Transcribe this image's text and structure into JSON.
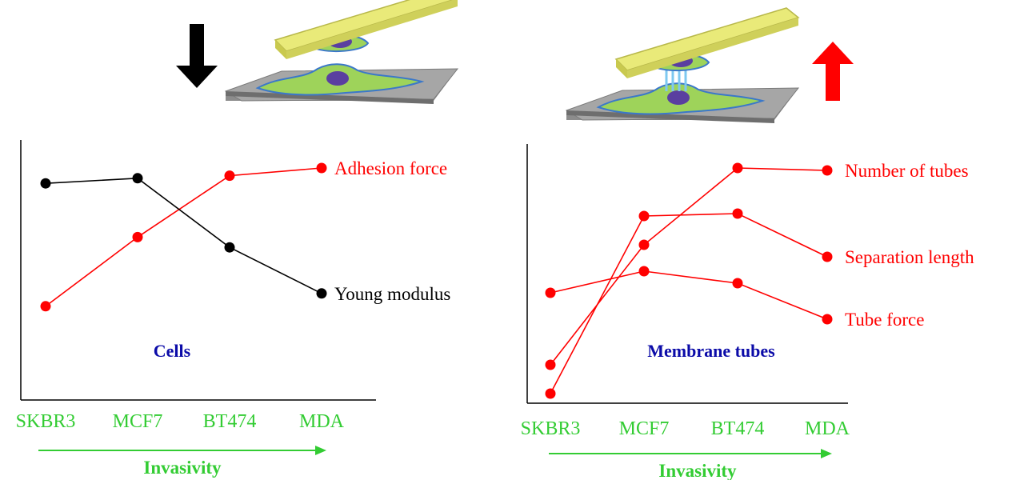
{
  "colors": {
    "red": "#ff0000",
    "black": "#000000",
    "title_blue": "#0b0ba8",
    "green": "#33cc33",
    "plate_yellow": "#e9ea79",
    "cell_green": "#9ed35a",
    "nucleus": "#5a3fa0",
    "surface_gray": "#a6a6a6"
  },
  "chart_data": [
    {
      "type": "line",
      "title": "Cells",
      "categories": [
        "SKBR3",
        "MCF7",
        "BT474",
        "MDA"
      ],
      "xlabel": "Invasivity",
      "ylabel": "",
      "ylim": [
        0,
        100
      ],
      "grid": false,
      "indicator": "down-arrow",
      "series": [
        {
          "name": "Adhesion force",
          "color": "#ff0000",
          "values": [
            31,
            58,
            82,
            85
          ]
        },
        {
          "name": "Young modulus",
          "color": "#000000",
          "values": [
            79,
            81,
            54,
            36
          ]
        }
      ]
    },
    {
      "type": "line",
      "title": "Membrane tubes",
      "categories": [
        "SKBR3",
        "MCF7",
        "BT474",
        "MDA"
      ],
      "xlabel": "Invasivity",
      "ylabel": "",
      "ylim": [
        0,
        100
      ],
      "grid": false,
      "indicator": "up-arrow",
      "series": [
        {
          "name": "Number of tubes",
          "color": "#ff0000",
          "values": [
            17,
            67,
            99,
            98
          ]
        },
        {
          "name": "Separation length",
          "color": "#ff0000",
          "values": [
            5,
            79,
            80,
            62
          ]
        },
        {
          "name": "Tube force",
          "color": "#ff0000",
          "values": [
            47,
            56,
            51,
            36
          ]
        }
      ]
    }
  ]
}
